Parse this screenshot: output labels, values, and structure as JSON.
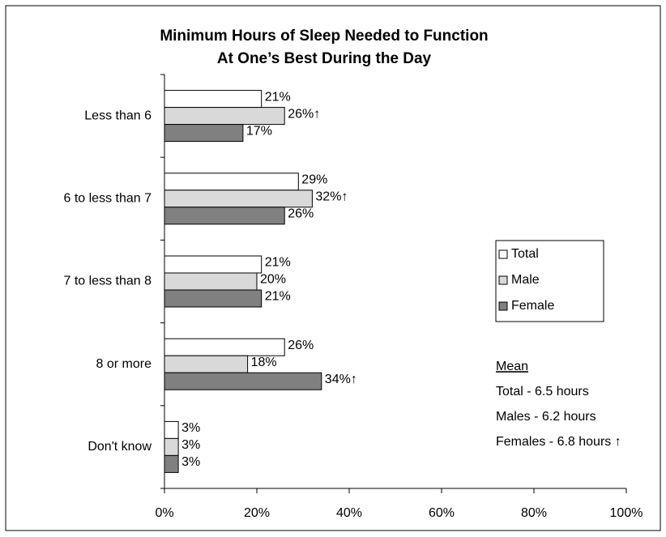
{
  "chart_data": {
    "type": "barh",
    "title": [
      "Minimum Hours of Sleep Needed to Function",
      "At One’s Best During the Day"
    ],
    "categories": [
      "Less than 6",
      "6 to less than 7",
      "7 to less than 8",
      "8 or more",
      "Don't know"
    ],
    "series": [
      {
        "name": "Total",
        "color": "#ffffff",
        "values": [
          21,
          29,
          21,
          26,
          3
        ],
        "value_labels": [
          "21%",
          "29%",
          "21%",
          "26%",
          "3%"
        ]
      },
      {
        "name": "Male",
        "color": "#d9d9d9",
        "values": [
          26,
          32,
          20,
          18,
          3
        ],
        "value_labels": [
          "26%↑",
          "32%↑",
          "20%",
          "18%",
          "3%"
        ]
      },
      {
        "name": "Female",
        "color": "#808080",
        "values": [
          17,
          26,
          21,
          34,
          3
        ],
        "value_labels": [
          "17%",
          "26%",
          "21%",
          "34%↑",
          "3%"
        ]
      }
    ],
    "xlim": [
      0,
      100
    ],
    "xticks": [
      {
        "value": 0,
        "label": "0%"
      },
      {
        "value": 20,
        "label": "20%"
      },
      {
        "value": 40,
        "label": "40%"
      },
      {
        "value": 60,
        "label": "60%"
      },
      {
        "value": 80,
        "label": "80%"
      },
      {
        "value": 100,
        "label": "100%"
      }
    ],
    "legend": "right",
    "annotations": [
      "Mean",
      "Total - 6.5 hours",
      "Males - 6.2 hours",
      "Females - 6.8 hours ↑"
    ]
  }
}
